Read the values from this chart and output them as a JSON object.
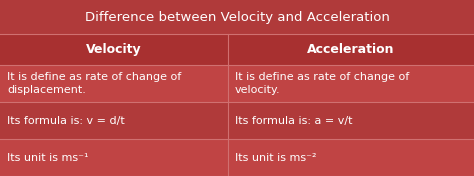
{
  "title": "Difference between Velocity and Acceleration",
  "title_bg": "#b03a3a",
  "title_color": "#ffffff",
  "header_bg": "#a83030",
  "header_color": "#ffffff",
  "cell_bg_dark": "#b03a3a",
  "cell_bg_light": "#c04444",
  "line_color": "#d07070",
  "col1_header": "Velocity",
  "col2_header": "Acceleration",
  "rows": [
    [
      "It is define as rate of change of\ndisplacement.",
      "It is define as rate of change of\nvelocity."
    ],
    [
      "Its formula is: v = d/t",
      "Its formula is: a = v/t"
    ],
    [
      "Its unit is ms⁻¹",
      "Its unit is ms⁻²"
    ]
  ],
  "figsize": [
    4.74,
    1.76
  ],
  "dpi": 100,
  "font_size_title": 9.5,
  "font_size_header": 9,
  "font_size_cell": 8
}
